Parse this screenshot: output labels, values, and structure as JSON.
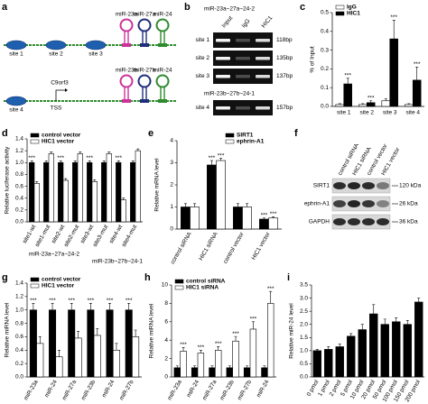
{
  "diagram_a": {
    "label": "a",
    "row1": {
      "mirs": [
        "miR-23a",
        "miR-27a",
        "miR-24"
      ],
      "sites": [
        "site 1",
        "site 2",
        "site 3"
      ]
    },
    "row2": {
      "mirs": [
        "miR-23b",
        "miR-27b",
        "miR-24"
      ],
      "sites": [
        "site 4"
      ],
      "gene": "C9orf3",
      "tss": "TSS"
    }
  },
  "gel_b": {
    "label": "b",
    "title1": "miR-23a~27a~24-2",
    "lanes": [
      "Input",
      "IgG",
      "HIC1"
    ],
    "rows": [
      {
        "site": "site 1",
        "size": "118bp"
      },
      {
        "site": "site 2",
        "size": "135bp"
      },
      {
        "site": "site 3",
        "size": "137bp"
      }
    ],
    "title2": "miR-23b~27b~24-1",
    "rows2": [
      {
        "site": "site 4",
        "size": "157bp"
      }
    ]
  },
  "blot_f": {
    "label": "f",
    "lanes": [
      "control siRNA",
      "HIC1 siRNA",
      "control vector",
      "HIC1 vector"
    ],
    "proteins": [
      {
        "name": "SIRT1",
        "size": "120 kDa"
      },
      {
        "name": "ephrin-A1",
        "size": "26 kDa"
      },
      {
        "name": "GAPDH",
        "size": "36 kDa"
      }
    ]
  },
  "chart_data": [
    {
      "label": "c",
      "type": "bar",
      "ylabel": "% of Input",
      "categories": [
        "site 1",
        "site 2",
        "site 3",
        "site 4"
      ],
      "series": [
        {
          "name": "IgG",
          "color": "#ffffff",
          "values": [
            0.01,
            0.01,
            0.03,
            0.01
          ],
          "errors": [
            0.005,
            0.005,
            0.01,
            0.005
          ]
        },
        {
          "name": "HIC1",
          "color": "#000000",
          "values": [
            0.12,
            0.02,
            0.36,
            0.14
          ],
          "errors": [
            0.03,
            0.01,
            0.1,
            0.07
          ],
          "significance": [
            "***",
            "***",
            "***",
            "***"
          ]
        }
      ],
      "ylim": [
        0,
        0.5
      ],
      "yticks": [
        {
          "value": 0,
          "label": "0.0"
        },
        0.1,
        0.2,
        0.3,
        0.4,
        0.5
      ],
      "legend": "upper left"
    },
    {
      "label": "d",
      "type": "bar",
      "ylabel": "Relative luciferase activity",
      "categories": [
        "site1-wt",
        "site1-mut",
        "site2-wt",
        "site2-mut",
        "site3-wt",
        "site3-mut",
        "site4-wt",
        "site4-mut"
      ],
      "group_labels": [
        "miR-23a~27a~24-2",
        "miR-23b~27b~24-1"
      ],
      "series": [
        {
          "name": "control vector",
          "color": "#000000",
          "values": [
            1,
            1,
            1,
            1,
            1,
            1,
            1,
            1
          ],
          "errors": [
            0.03,
            0.03,
            0.03,
            0.03,
            0.03,
            0.03,
            0.03,
            0.03
          ],
          "significance": [
            "***",
            null,
            "***",
            null,
            "***",
            null,
            "***",
            null
          ]
        },
        {
          "name": "HIC1 vector",
          "color": "#ffffff",
          "values": [
            0.65,
            1.15,
            0.7,
            1.15,
            0.68,
            1.15,
            0.37,
            1.2
          ],
          "errors": [
            0.03,
            0.03,
            0.03,
            0.03,
            0.03,
            0.03,
            0.03,
            0.03
          ]
        }
      ],
      "ylim": [
        0,
        1.4
      ],
      "yticks": [
        {
          "value": 0,
          "label": "0.0"
        },
        0.2,
        0.4,
        0.6,
        0.8,
        {
          "value": 1,
          "label": "1.0"
        },
        1.2,
        1.4
      ],
      "legend": "upper left"
    },
    {
      "label": "e",
      "type": "bar",
      "ylabel": "Relative mRNA level",
      "categories": [
        "control siRNA",
        "HIC1 siRNA",
        "control vector",
        "HIC1 vector"
      ],
      "series": [
        {
          "name": "SIRT1",
          "color": "#000000",
          "values": [
            1,
            2.9,
            1,
            0.45
          ],
          "errors": [
            0.15,
            0.2,
            0.15,
            0.05
          ],
          "significance": [
            null,
            "***",
            null,
            "***"
          ]
        },
        {
          "name": "ephrin-A1",
          "color": "#ffffff",
          "values": [
            1,
            3.1,
            1,
            0.5
          ],
          "errors": [
            0.15,
            0.1,
            0.15,
            0.05
          ],
          "significance": [
            null,
            "***",
            null,
            "***"
          ]
        }
      ],
      "ylim": [
        0,
        4
      ],
      "yticks": [
        0,
        1,
        2,
        3,
        4
      ],
      "legend": "upper left"
    },
    {
      "label": "g",
      "type": "bar",
      "ylabel": "Relative miRNA level",
      "categories": [
        "miR-23a",
        "miR-24",
        "miR-27a",
        "miR-23b",
        "miR-24",
        "miR-27b"
      ],
      "series": [
        {
          "name": "control vector",
          "color": "#000000",
          "values": [
            1,
            1,
            1,
            1,
            1,
            1
          ],
          "errors": [
            0.1,
            0.1,
            0.1,
            0.1,
            0.1,
            0.1
          ],
          "significance": [
            "***",
            "***",
            "***",
            "***",
            "***",
            "***"
          ]
        },
        {
          "name": "HIC1 vector",
          "color": "#ffffff",
          "values": [
            0.5,
            0.3,
            0.58,
            0.62,
            0.4,
            0.6
          ],
          "errors": [
            0.1,
            0.1,
            0.1,
            0.1,
            0.1,
            0.1
          ]
        }
      ],
      "ylim": [
        0,
        1.4
      ],
      "yticks": [
        {
          "value": 0,
          "label": "0.0"
        },
        0.2,
        0.4,
        0.6,
        0.8,
        {
          "value": 1,
          "label": "1.0"
        },
        1.2,
        1.4
      ],
      "legend": "upper left"
    },
    {
      "label": "h",
      "type": "bar",
      "ylabel": "Relative miRNA level",
      "categories": [
        "miR-23a",
        "miR-24",
        "miR-27a",
        "miR-23b",
        "miR-27b",
        "miR-24"
      ],
      "series": [
        {
          "name": "control siRNA",
          "color": "#000000",
          "values": [
            1,
            1,
            1,
            1,
            1,
            1
          ],
          "errors": [
            0.2,
            0.2,
            0.2,
            0.2,
            0.2,
            0.2
          ]
        },
        {
          "name": "HIC1 siRNA",
          "color": "#ffffff",
          "values": [
            2.8,
            2.6,
            2.9,
            3.9,
            5.2,
            8.0
          ],
          "errors": [
            0.4,
            0.3,
            0.4,
            0.5,
            0.8,
            1.3
          ],
          "significance": [
            "***",
            "***",
            "***",
            "***",
            "***",
            "***"
          ]
        }
      ],
      "ylim": [
        0,
        10
      ],
      "yticks": [
        0,
        2,
        4,
        6,
        8,
        10
      ],
      "legend": "upper left"
    },
    {
      "label": "i",
      "type": "bar",
      "ylabel": "Relative miR-24 level",
      "categories": [
        "0 pmol",
        "1 pmol",
        "2 pmol",
        "5 pmol",
        "10 pmol",
        "20 pmol",
        "50 pmol",
        "100 pmol",
        "150 pmol",
        "200 pmol"
      ],
      "color": "#000000",
      "values": [
        1.0,
        1.05,
        1.15,
        1.55,
        1.8,
        2.4,
        2.0,
        2.1,
        2.0,
        2.85
      ],
      "errors": [
        0.05,
        0.1,
        0.1,
        0.1,
        0.2,
        0.35,
        0.2,
        0.15,
        0.15,
        0.15
      ],
      "ylim": [
        0,
        3.5
      ],
      "yticks": [
        {
          "value": 0,
          "label": "0.0"
        },
        0.5,
        {
          "value": 1,
          "label": "1.0"
        },
        1.5,
        {
          "value": 2,
          "label": "2.0"
        },
        2.5,
        {
          "value": 3,
          "label": "3.0"
        },
        3.5
      ]
    }
  ]
}
